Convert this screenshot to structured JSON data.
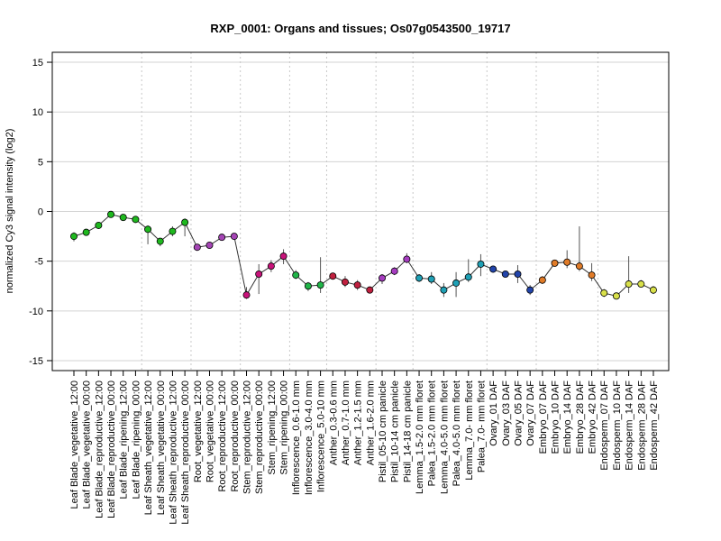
{
  "chart_data": {
    "type": "line",
    "title": "RXP_0001: Organs and tissues; Os07g0543500_19717",
    "ylabel": "normalized Cy3 signal intensity (log2)",
    "xlabel": "",
    "ylim": [
      -16,
      16
    ],
    "yticks": [
      -15,
      -10,
      -5,
      0,
      5,
      10,
      15
    ],
    "grid": true,
    "categories": [
      "Leaf Blade_vegetative_12:00",
      "Leaf Blade_vegetative_00:00",
      "Leaf Blade_reproductive_12:00",
      "Leaf Blade_reproductive_00:00",
      "Leaf Blade_ripening_12:00",
      "Leaf Blade_ripening_00:00",
      "Leaf Sheath_vegetative_12:00",
      "Leaf Sheath_vegetative_00:00",
      "Leaf Sheath_reproductive_12:00",
      "Leaf Sheath_reproductive_00:00",
      "Root_vegetative_12:00",
      "Root_vegetative_00:00",
      "Root_reproductive_12:00",
      "Root_reproductive_00:00",
      "Stem_reproductive_12:00",
      "Stem_reproductive_00:00",
      "Stem_ripening_12:00",
      "Stem_ripening_00:00",
      "Inflorescence_0.6-1.0 mm",
      "Inflorescence_3.0-4.0 mm",
      "Inflorescence_5.0-10 mm",
      "Anther_0.3-0.6 mm",
      "Anther_0.7-1.0 mm",
      "Anther_1.2-1.5 mm",
      "Anther_1.6-2.0 mm",
      "Pistil_05-10 cm panicle",
      "Pistil_10-14 cm panicle",
      "Pistil_14-18 cm panicle",
      "Lemma_1.5-2.0 mm floret",
      "Palea_1.5-2.0 mm floret",
      "Lemma_4.0-5.0 mm floret",
      "Palea_4.0-5.0 mm floret",
      "Lemma_7.0- mm floret",
      "Palea_7.0- mm floret",
      "Ovary_01 DAF",
      "Ovary_03 DAF",
      "Ovary_05 DAF",
      "Ovary_07 DAF",
      "Embryo_07 DAF",
      "Embryo_10 DAF",
      "Embryo_14 DAF",
      "Embryo_28 DAF",
      "Embryo_42 DAF",
      "Endosperm_07 DAF",
      "Endosperm_10 DAF",
      "Endosperm_14 DAF",
      "Endosperm_28 DAF",
      "Endosperm_42 DAF"
    ],
    "values": [
      -2.5,
      -2.1,
      -1.4,
      -0.3,
      -0.6,
      -0.8,
      -1.8,
      -3.0,
      -2.0,
      -1.1,
      -3.6,
      -3.4,
      -2.6,
      -2.5,
      -8.4,
      -6.3,
      -5.5,
      -4.5,
      -6.4,
      -7.5,
      -7.4,
      -6.5,
      -7.1,
      -7.4,
      -7.9,
      -6.7,
      -6.0,
      -4.8,
      -6.7,
      -6.8,
      -7.9,
      -7.2,
      -6.6,
      -5.3,
      -5.8,
      -6.3,
      -6.3,
      -7.9,
      -6.9,
      -5.2,
      -5.1,
      -5.5,
      -6.4,
      -8.2,
      -8.5,
      -7.3,
      -7.3,
      -7.9
    ],
    "err_low": [
      -3.0,
      -2.4,
      -1.6,
      -0.5,
      -0.8,
      -1.1,
      -3.3,
      -3.5,
      -2.5,
      -2.5,
      -3.9,
      -3.6,
      -2.8,
      -2.8,
      -8.8,
      -8.3,
      -6.1,
      -5.3,
      -6.8,
      -8.0,
      -8.2,
      -6.8,
      -7.6,
      -7.9,
      -8.2,
      -7.3,
      -6.4,
      -5.2,
      -7.1,
      -7.3,
      -8.6,
      -8.6,
      -7.1,
      -6.5,
      -6.1,
      -6.6,
      -7.2,
      -8.4,
      -7.3,
      -5.5,
      -5.7,
      -6.0,
      -7.0,
      -8.6,
      -8.8,
      -8.2,
      -7.6,
      -8.3
    ],
    "err_high": [
      -2.1,
      -1.9,
      -1.2,
      -0.1,
      -0.4,
      -0.5,
      -1.4,
      -2.7,
      -1.5,
      -0.7,
      -3.3,
      -3.2,
      -2.3,
      -2.2,
      -7.6,
      -5.3,
      -4.9,
      -3.8,
      -5.9,
      -7.1,
      -4.6,
      -6.2,
      -6.5,
      -6.9,
      -7.6,
      -6.3,
      -5.6,
      -4.2,
      -6.3,
      -6.1,
      -7.2,
      -6.1,
      -4.8,
      -4.3,
      -5.5,
      -6.0,
      -5.4,
      -7.4,
      -6.5,
      -4.9,
      -3.9,
      -1.5,
      -5.2,
      -7.8,
      -8.2,
      -4.5,
      -6.9,
      -7.5
    ],
    "colors": [
      "#1fb81f",
      "#1fb81f",
      "#1fb81f",
      "#1fb81f",
      "#1fb81f",
      "#1fb81f",
      "#1fb81f",
      "#1fb81f",
      "#1fb81f",
      "#1fb81f",
      "#a545b5",
      "#a545b5",
      "#a545b5",
      "#a545b5",
      "#c8137a",
      "#c8137a",
      "#c8137a",
      "#c8137a",
      "#20b548",
      "#20b548",
      "#20b548",
      "#c0203f",
      "#c0203f",
      "#c0203f",
      "#c0203f",
      "#a63cc0",
      "#a63cc0",
      "#a63cc0",
      "#1fa0b5",
      "#1fa0b5",
      "#1fa0b5",
      "#1fa0b5",
      "#1fa0b5",
      "#1fa0b5",
      "#2244aa",
      "#2244aa",
      "#2244aa",
      "#2244aa",
      "#e07b28",
      "#e07b28",
      "#e07b28",
      "#e07b28",
      "#e07b28",
      "#d8e04a",
      "#d8e04a",
      "#d8e04a",
      "#d8e04a",
      "#d8e04a"
    ],
    "group_separators_after": [
      5,
      9,
      13,
      17,
      20,
      24,
      27,
      33,
      37,
      42
    ]
  }
}
